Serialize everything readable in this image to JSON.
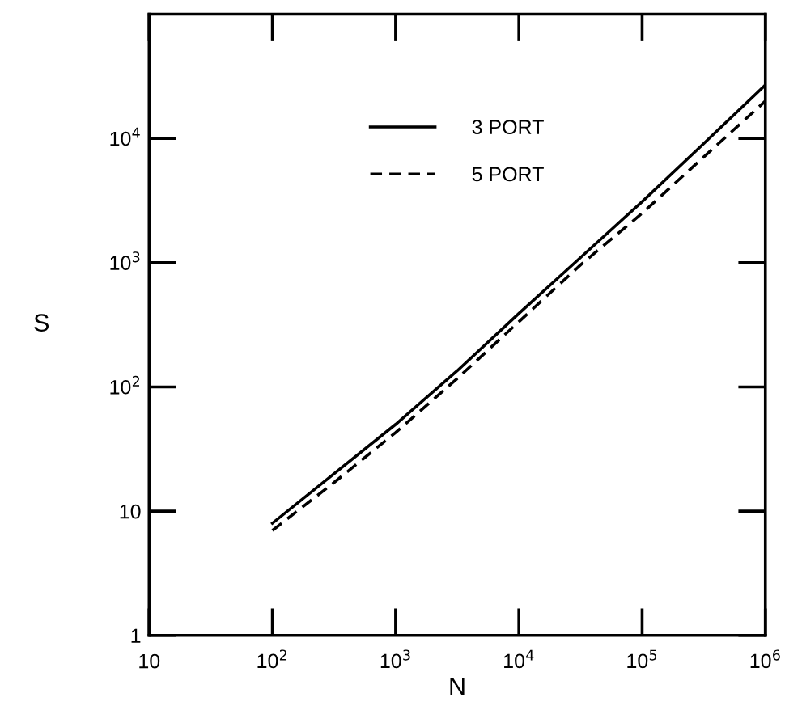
{
  "chart_data": {
    "type": "line",
    "xlabel": "N",
    "ylabel": "S",
    "log": "xy",
    "x": [
      100,
      316,
      1000,
      3162,
      10000,
      31623,
      100000,
      316228,
      1000000
    ],
    "series": [
      {
        "name": "3 PORT",
        "color": "#000000",
        "line_style": "solid",
        "values": [
          8.0,
          20,
          50,
          135,
          390,
          1100,
          3100,
          9100,
          27000
        ]
      },
      {
        "name": "5 PORT",
        "color": "#000000",
        "line_style": "dashed",
        "values": [
          7.0,
          17,
          43,
          117,
          335,
          960,
          2500,
          7100,
          20000
        ]
      }
    ],
    "xlim": [
      10,
      1000000
    ],
    "ylim": [
      1,
      100000
    ],
    "xticks": [
      10,
      {
        "value": 100,
        "label": "10$^{2}$"
      },
      {
        "value": 1000,
        "label": "10$^{3}$"
      },
      {
        "value": 10000,
        "label": "10$^{4}$"
      },
      {
        "value": 100000,
        "label": "10$^{5}$"
      },
      {
        "value": 1000000,
        "label": "10$^{6}$"
      }
    ],
    "yticks": [
      1,
      10,
      {
        "value": 100,
        "label": "10$^{2}$"
      },
      {
        "value": 1000,
        "label": "10$^{3}$"
      },
      {
        "value": 10000,
        "label": "10$^{4}$"
      }
    ],
    "grid": false,
    "legend": "top"
  }
}
